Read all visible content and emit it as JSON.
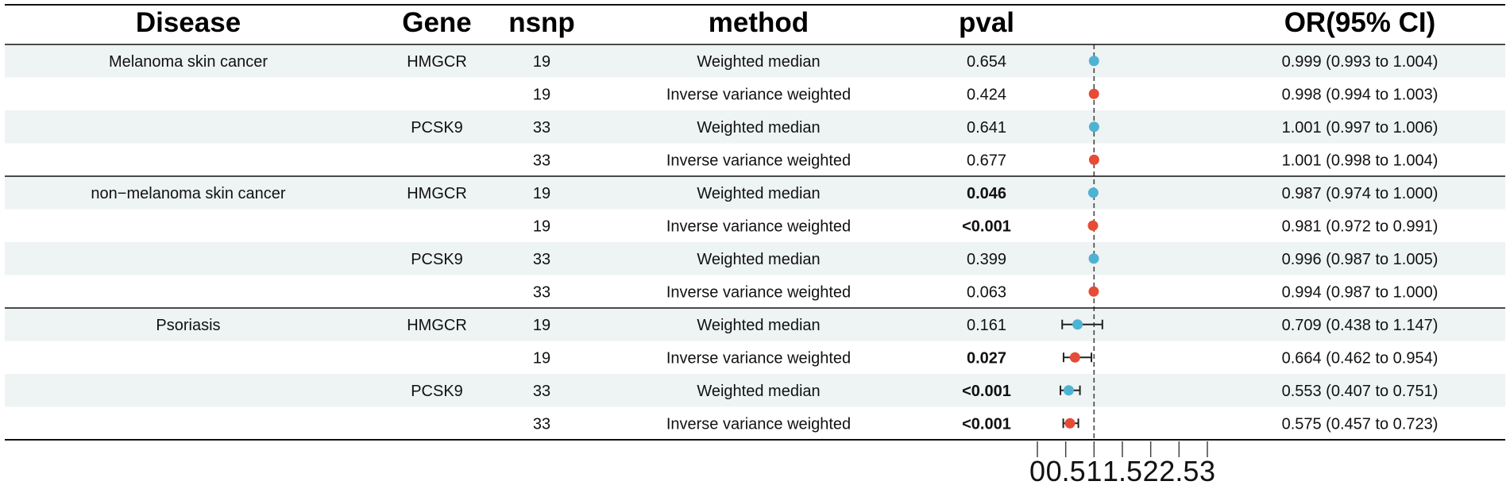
{
  "chart_data": {
    "type": "table",
    "columns": [
      "Disease",
      "Gene",
      "nsnp",
      "method",
      "pval",
      "OR(95% CI)"
    ],
    "rows": [
      {
        "disease": "Melanoma skin cancer",
        "gene": "HMGCR",
        "nsnp": "19",
        "method": "Weighted median",
        "pval": "0.654",
        "pval_bold": false,
        "or_text": "0.999 (0.993 to 1.004)",
        "or": 0.999,
        "lo": 0.993,
        "hi": 1.004,
        "color": "#4eb3d3"
      },
      {
        "disease": "",
        "gene": "",
        "nsnp": "19",
        "method": "Inverse variance weighted",
        "pval": "0.424",
        "pval_bold": false,
        "or_text": "0.998 (0.994 to 1.003)",
        "or": 0.998,
        "lo": 0.994,
        "hi": 1.003,
        "color": "#e64b35"
      },
      {
        "disease": "",
        "gene": "PCSK9",
        "nsnp": "33",
        "method": "Weighted median",
        "pval": "0.641",
        "pval_bold": false,
        "or_text": "1.001 (0.997 to 1.006)",
        "or": 1.001,
        "lo": 0.997,
        "hi": 1.006,
        "color": "#4eb3d3"
      },
      {
        "disease": "",
        "gene": "",
        "nsnp": "33",
        "method": "Inverse variance weighted",
        "pval": "0.677",
        "pval_bold": false,
        "or_text": "1.001 (0.998 to 1.004)",
        "or": 1.001,
        "lo": 0.998,
        "hi": 1.004,
        "color": "#e64b35"
      },
      {
        "disease": "non−melanoma skin cancer",
        "gene": "HMGCR",
        "nsnp": "19",
        "method": "Weighted median",
        "pval": "0.046",
        "pval_bold": true,
        "or_text": "0.987 (0.974 to 1.000)",
        "or": 0.987,
        "lo": 0.974,
        "hi": 1.0,
        "color": "#4eb3d3"
      },
      {
        "disease": "",
        "gene": "",
        "nsnp": "19",
        "method": "Inverse variance weighted",
        "pval": "<0.001",
        "pval_bold": true,
        "or_text": "0.981 (0.972 to 0.991)",
        "or": 0.981,
        "lo": 0.972,
        "hi": 0.991,
        "color": "#e64b35"
      },
      {
        "disease": "",
        "gene": "PCSK9",
        "nsnp": "33",
        "method": "Weighted median",
        "pval": "0.399",
        "pval_bold": false,
        "or_text": "0.996 (0.987 to 1.005)",
        "or": 0.996,
        "lo": 0.987,
        "hi": 1.005,
        "color": "#4eb3d3"
      },
      {
        "disease": "",
        "gene": "",
        "nsnp": "33",
        "method": "Inverse variance weighted",
        "pval": "0.063",
        "pval_bold": false,
        "or_text": "0.994 (0.987 to 1.000)",
        "or": 0.994,
        "lo": 0.987,
        "hi": 1.0,
        "color": "#e64b35"
      },
      {
        "disease": "Psoriasis",
        "gene": "HMGCR",
        "nsnp": "19",
        "method": "Weighted median",
        "pval": "0.161",
        "pval_bold": false,
        "or_text": "0.709 (0.438 to 1.147)",
        "or": 0.709,
        "lo": 0.438,
        "hi": 1.147,
        "color": "#4eb3d3"
      },
      {
        "disease": "",
        "gene": "",
        "nsnp": "19",
        "method": "Inverse variance weighted",
        "pval": "0.027",
        "pval_bold": true,
        "or_text": "0.664 (0.462 to 0.954)",
        "or": 0.664,
        "lo": 0.462,
        "hi": 0.954,
        "color": "#e64b35"
      },
      {
        "disease": "",
        "gene": "PCSK9",
        "nsnp": "33",
        "method": "Weighted median",
        "pval": "<0.001",
        "pval_bold": true,
        "or_text": "0.553 (0.407 to 0.751)",
        "or": 0.553,
        "lo": 0.407,
        "hi": 0.751,
        "color": "#4eb3d3"
      },
      {
        "disease": "",
        "gene": "",
        "nsnp": "33",
        "method": "Inverse variance weighted",
        "pval": "<0.001",
        "pval_bold": true,
        "or_text": "0.575 (0.457 to 0.723)",
        "or": 0.575,
        "lo": 0.457,
        "hi": 0.723,
        "color": "#e64b35"
      }
    ],
    "forest_axis": {
      "ticks": [
        0,
        0.5,
        1,
        1.5,
        2,
        2.5,
        3
      ],
      "tick_labels": [
        "0",
        "0.5",
        "1",
        "1.5",
        "2",
        "2.5",
        "3"
      ],
      "reference_line": 1,
      "xlim": [
        0,
        3
      ]
    },
    "row_shading": "#eef3f3"
  }
}
